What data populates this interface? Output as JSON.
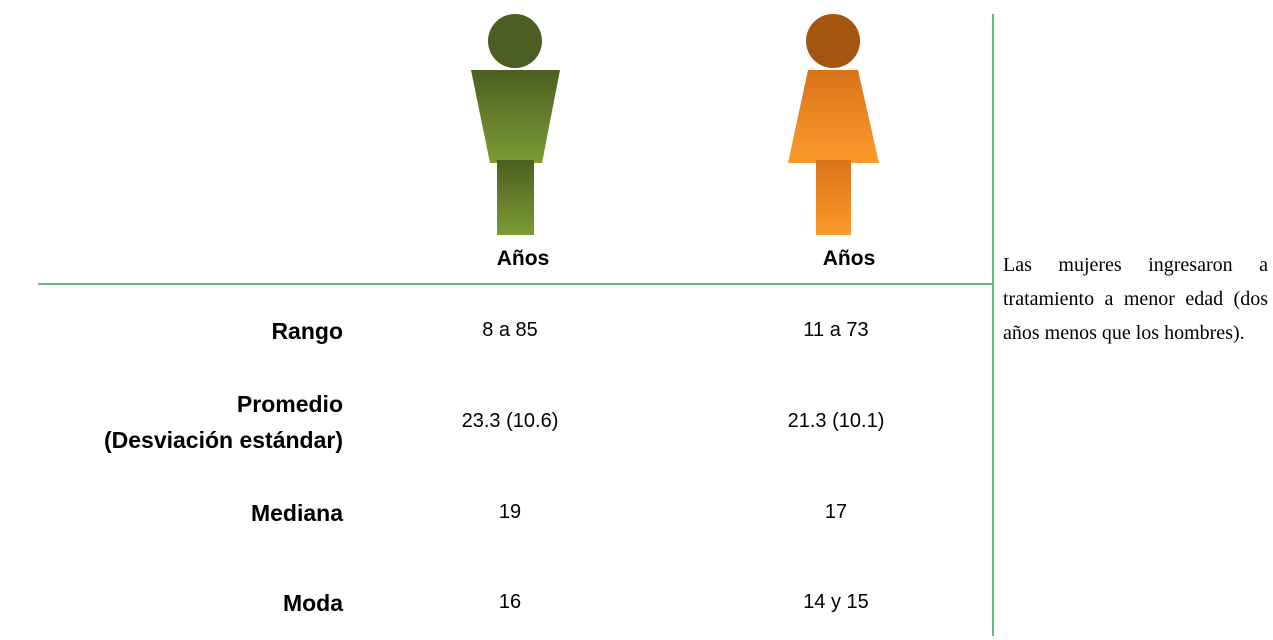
{
  "table": {
    "header": [
      "Años",
      "Años"
    ],
    "rows": [
      {
        "label": [
          "Rango"
        ],
        "values": [
          "8 a 85",
          "11 a 73"
        ]
      },
      {
        "label": [
          "Promedio",
          "(Desviación estándar)"
        ],
        "values": [
          "23.3 (10.6)",
          "21.3 (10.1)"
        ]
      },
      {
        "label": [
          "Mediana"
        ],
        "values": [
          "19",
          "17"
        ]
      },
      {
        "label": [
          "Moda"
        ],
        "values": [
          "16",
          "14 y 15"
        ]
      }
    ]
  },
  "note": "Las mujeres ingresaron a tratamiento a menor edad (dos años menos que los hombres)."
}
